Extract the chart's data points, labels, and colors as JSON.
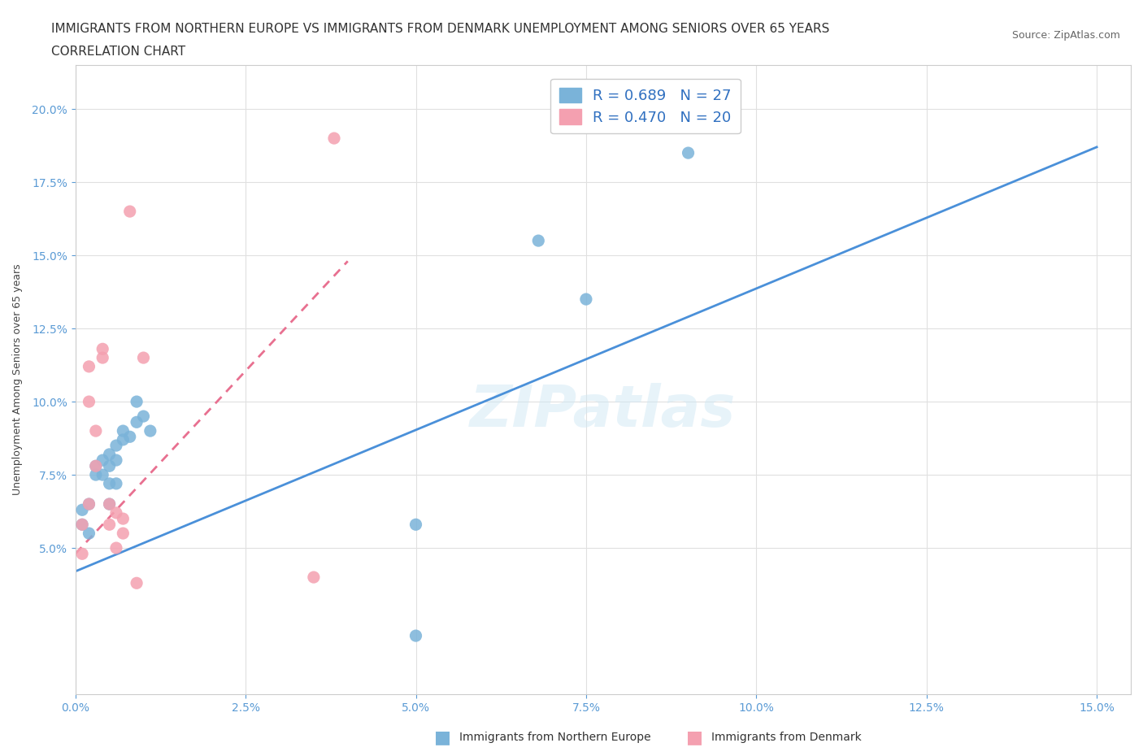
{
  "title_line1": "IMMIGRANTS FROM NORTHERN EUROPE VS IMMIGRANTS FROM DENMARK UNEMPLOYMENT AMONG SENIORS OVER 65 YEARS",
  "title_line2": "CORRELATION CHART",
  "source": "Source: ZipAtlas.com",
  "ylabel_label": "Unemployment Among Seniors over 65 years",
  "legend_entry1": {
    "label": "Immigrants from Northern Europe",
    "R": 0.689,
    "N": 27
  },
  "legend_entry2": {
    "label": "Immigrants from Denmark",
    "R": 0.47,
    "N": 20
  },
  "watermark": "ZIPatlas",
  "blue_scatter_x": [
    0.001,
    0.001,
    0.002,
    0.002,
    0.003,
    0.003,
    0.004,
    0.004,
    0.005,
    0.005,
    0.005,
    0.005,
    0.006,
    0.006,
    0.006,
    0.007,
    0.007,
    0.008,
    0.009,
    0.009,
    0.01,
    0.011,
    0.05,
    0.05,
    0.068,
    0.075,
    0.09
  ],
  "blue_scatter_y": [
    0.058,
    0.063,
    0.055,
    0.065,
    0.075,
    0.078,
    0.075,
    0.08,
    0.065,
    0.072,
    0.078,
    0.082,
    0.072,
    0.08,
    0.085,
    0.087,
    0.09,
    0.088,
    0.093,
    0.1,
    0.095,
    0.09,
    0.02,
    0.058,
    0.155,
    0.135,
    0.185
  ],
  "pink_scatter_x": [
    0.001,
    0.001,
    0.002,
    0.002,
    0.002,
    0.003,
    0.003,
    0.004,
    0.004,
    0.005,
    0.005,
    0.006,
    0.006,
    0.007,
    0.007,
    0.008,
    0.009,
    0.01,
    0.035,
    0.038
  ],
  "pink_scatter_y": [
    0.048,
    0.058,
    0.065,
    0.1,
    0.112,
    0.078,
    0.09,
    0.115,
    0.118,
    0.058,
    0.065,
    0.05,
    0.062,
    0.055,
    0.06,
    0.165,
    0.038,
    0.115,
    0.04,
    0.19
  ],
  "blue_line_x": [
    0.0,
    0.15
  ],
  "blue_line_y": [
    0.042,
    0.187
  ],
  "pink_line_x": [
    0.0,
    0.04
  ],
  "pink_line_y": [
    0.048,
    0.148
  ],
  "xlim": [
    0.0,
    0.155
  ],
  "ylim": [
    0.0,
    0.215
  ],
  "xticks": [
    0.0,
    0.025,
    0.05,
    0.075,
    0.1,
    0.125,
    0.15
  ],
  "yticks": [
    0.05,
    0.075,
    0.1,
    0.125,
    0.15,
    0.175,
    0.2
  ],
  "blue_dot_color": "#7ab3d9",
  "pink_dot_color": "#f4a0b0",
  "blue_line_color": "#4a90d9",
  "pink_line_color": "#e87090",
  "grid_color": "#e0e0e0",
  "title_fontsize": 11,
  "axis_label_fontsize": 9,
  "legend_fontsize": 13,
  "tick_color": "#5b9bd5"
}
